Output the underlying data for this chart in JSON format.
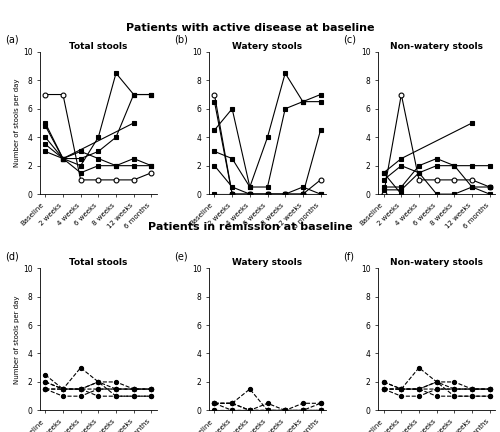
{
  "title_top": "Patients with active disease at baseline",
  "title_bottom": "Patients in remission at baseline",
  "xtick_labels": [
    "Baseline",
    "2 weeks",
    "4 weeks",
    "6 weeks",
    "8 weeks",
    "12 weeks",
    "6 months"
  ],
  "x": [
    0,
    1,
    2,
    3,
    4,
    5,
    6
  ],
  "subplot_titles_top": [
    "Total stools",
    "Watery stools",
    "Non-watery stools"
  ],
  "subplot_titles_bottom": [
    "Total stools",
    "Watery stools",
    "Non-watery stools"
  ],
  "subplot_labels_top": [
    "(a)",
    "(b)",
    "(c)"
  ],
  "subplot_labels_bottom": [
    "(d)",
    "(e)",
    "(f)"
  ],
  "ylabel": "Number of stools per day",
  "ylim": [
    0,
    10
  ],
  "yticks": [
    0,
    2,
    4,
    6,
    8,
    10
  ],
  "active_total": [
    {
      "y": [
        7,
        7,
        1,
        1,
        1,
        1,
        1.5
      ],
      "style": "open"
    },
    {
      "y": [
        4.8,
        2.5,
        2,
        4,
        8.5,
        7,
        7
      ],
      "style": "filled"
    },
    {
      "y": [
        3.5,
        2.5,
        2.5,
        3,
        4,
        7,
        7
      ],
      "style": "filled"
    },
    {
      "y": [
        3,
        2.5,
        1.5,
        2,
        2,
        2,
        2
      ],
      "style": "filled"
    },
    {
      "y": [
        4,
        2.5,
        3,
        2.5,
        2,
        2.5,
        2
      ],
      "style": "filled"
    },
    {
      "y": [
        5,
        2.5,
        null,
        null,
        null,
        5,
        null
      ],
      "style": "filled"
    }
  ],
  "active_watery": [
    {
      "y": [
        7,
        0,
        0,
        0,
        0,
        0,
        1
      ],
      "style": "open"
    },
    {
      "y": [
        4.5,
        6,
        0.5,
        4,
        8.5,
        6.5,
        7
      ],
      "style": "filled"
    },
    {
      "y": [
        3,
        2.5,
        0.5,
        0.5,
        6,
        6.5,
        6.5
      ],
      "style": "filled"
    },
    {
      "y": [
        2,
        0.5,
        0,
        0,
        0,
        0.5,
        0
      ],
      "style": "filled"
    },
    {
      "y": [
        6.5,
        0,
        0,
        0,
        0,
        0,
        4.5
      ],
      "style": "filled"
    },
    {
      "y": [
        0,
        0,
        0,
        0,
        0,
        0,
        0
      ],
      "style": "filled"
    }
  ],
  "active_nonwatery": [
    {
      "y": [
        0,
        7,
        1,
        1,
        1,
        1,
        0.5
      ],
      "style": "open"
    },
    {
      "y": [
        0.3,
        0.3,
        1.5,
        0,
        0,
        0.5,
        0
      ],
      "style": "filled"
    },
    {
      "y": [
        0.5,
        0.5,
        2,
        2.5,
        2,
        0.5,
        0.5
      ],
      "style": "filled"
    },
    {
      "y": [
        1,
        2,
        1.5,
        2,
        2,
        2,
        2
      ],
      "style": "filled"
    },
    {
      "y": [
        1.5,
        2.5,
        null,
        null,
        null,
        5,
        null
      ],
      "style": "filled"
    },
    {
      "y": [
        1.5,
        0,
        null,
        null,
        null,
        null,
        null
      ],
      "style": "filled"
    }
  ],
  "remission_total": [
    {
      "y": [
        2.5,
        1.5,
        1.5,
        1.5,
        1.5,
        1.5,
        1.5
      ],
      "style": "dashed"
    },
    {
      "y": [
        1.5,
        1.5,
        1.5,
        2,
        2,
        1.5,
        1.5
      ],
      "style": "dashed"
    },
    {
      "y": [
        1.5,
        1.5,
        1.5,
        1,
        1,
        1,
        1
      ],
      "style": "dashed"
    },
    {
      "y": [
        2,
        1.5,
        3,
        2,
        1,
        1,
        1
      ],
      "style": "dashed"
    },
    {
      "y": [
        1.5,
        1,
        1,
        1.5,
        1.5,
        1.5,
        1.5
      ],
      "style": "dashed"
    },
    {
      "y": [
        2,
        1.5,
        1.5,
        2,
        1.5,
        1.5,
        1.5
      ],
      "style": "dashed"
    }
  ],
  "remission_watery": [
    {
      "y": [
        0.5,
        0.5,
        1.5,
        0,
        0,
        0,
        0.5
      ],
      "style": "dashed"
    },
    {
      "y": [
        0.5,
        0.5,
        0,
        0,
        0,
        0,
        0
      ],
      "style": "dashed"
    },
    {
      "y": [
        0,
        0,
        0,
        0,
        0,
        0,
        0
      ],
      "style": "dashed"
    },
    {
      "y": [
        0.5,
        0,
        0,
        0,
        0,
        0.5,
        0.5
      ],
      "style": "dashed"
    },
    {
      "y": [
        0.5,
        0.5,
        0,
        0.5,
        0,
        0,
        0
      ],
      "style": "dashed"
    },
    {
      "y": [
        0,
        0,
        0,
        0,
        0,
        0,
        0
      ],
      "style": "dashed"
    }
  ],
  "remission_nonwatery": [
    {
      "y": [
        2,
        1.5,
        1.5,
        1.5,
        1.5,
        1.5,
        1.5
      ],
      "style": "dashed"
    },
    {
      "y": [
        1.5,
        1.5,
        1.5,
        2,
        2,
        1.5,
        1.5
      ],
      "style": "dashed"
    },
    {
      "y": [
        1.5,
        1.5,
        1.5,
        1,
        1,
        1,
        1
      ],
      "style": "dashed"
    },
    {
      "y": [
        1.5,
        1.5,
        3,
        2,
        1,
        1,
        1
      ],
      "style": "dashed"
    },
    {
      "y": [
        1.5,
        1,
        1,
        1.5,
        1.5,
        1.5,
        1.5
      ],
      "style": "dashed"
    },
    {
      "y": [
        2,
        1.5,
        1.5,
        2,
        1.5,
        1.5,
        1.5
      ],
      "style": "dashed"
    }
  ]
}
